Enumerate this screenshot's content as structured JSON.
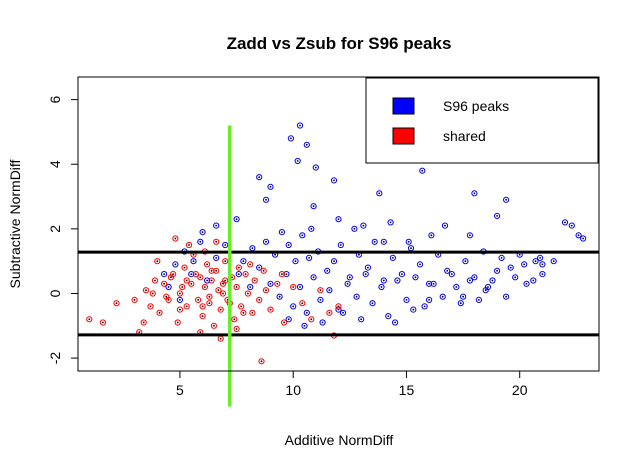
{
  "chart_data": {
    "type": "scatter",
    "title": "Zadd vs Zsub for S96 peaks",
    "xlabel": "Additive NormDiff",
    "ylabel": "Subtractive NormDiff",
    "xlim": [
      0.5,
      23.5
    ],
    "ylim": [
      -2.4,
      6.7
    ],
    "xticks": [
      5,
      10,
      15,
      20
    ],
    "yticks": [
      -2,
      0,
      2,
      4,
      6
    ],
    "grid": false,
    "legend": {
      "placement": "top-right",
      "entries": [
        {
          "label": "S96 peaks",
          "color": "#0000ff"
        },
        {
          "label": "shared",
          "color": "#ff0000"
        }
      ]
    },
    "reference_lines": {
      "horizontal": [
        1.28,
        -1.28
      ],
      "vertical": [
        {
          "x": 7.2,
          "y_from": -3.5,
          "y_to": 5.2,
          "color": "#66ee22"
        }
      ]
    },
    "series": [
      {
        "name": "S96 peaks",
        "color": "#0000ff",
        "points": [
          [
            10.3,
            5.2
          ],
          [
            9.9,
            4.8
          ],
          [
            10.6,
            4.6
          ],
          [
            10.2,
            4.1
          ],
          [
            11.0,
            3.9
          ],
          [
            8.5,
            3.6
          ],
          [
            11.8,
            3.5
          ],
          [
            9.0,
            3.3
          ],
          [
            13.8,
            3.1
          ],
          [
            8.8,
            2.9
          ],
          [
            15.7,
            3.8
          ],
          [
            18.0,
            3.1
          ],
          [
            19.4,
            2.9
          ],
          [
            19.0,
            2.4
          ],
          [
            16.7,
            2.1
          ],
          [
            22.0,
            2.2
          ],
          [
            22.3,
            2.1
          ],
          [
            22.6,
            1.8
          ],
          [
            22.8,
            1.7
          ],
          [
            17.8,
            1.8
          ],
          [
            7.5,
            2.3
          ],
          [
            6.6,
            2.1
          ],
          [
            12.0,
            2.3
          ],
          [
            13.1,
            2.1
          ],
          [
            14.3,
            2.2
          ],
          [
            9.5,
            1.9
          ],
          [
            10.8,
            2.0
          ],
          [
            8.2,
            1.4
          ],
          [
            8.8,
            1.6
          ],
          [
            9.2,
            1.2
          ],
          [
            9.8,
            1.5
          ],
          [
            10.1,
            1.0
          ],
          [
            10.4,
            1.8
          ],
          [
            10.7,
            1.1
          ],
          [
            11.1,
            1.3
          ],
          [
            11.5,
            0.7
          ],
          [
            11.8,
            1.0
          ],
          [
            12.1,
            1.5
          ],
          [
            12.5,
            0.5
          ],
          [
            12.9,
            1.2
          ],
          [
            13.3,
            0.8
          ],
          [
            13.6,
            1.6
          ],
          [
            14.0,
            0.4
          ],
          [
            14.4,
            1.1
          ],
          [
            14.8,
            0.6
          ],
          [
            15.2,
            1.4
          ],
          [
            15.6,
            0.9
          ],
          [
            16.0,
            0.3
          ],
          [
            16.4,
            1.2
          ],
          [
            16.8,
            0.7
          ],
          [
            17.2,
            0.2
          ],
          [
            17.6,
            1.0
          ],
          [
            18.0,
            0.5
          ],
          [
            18.4,
            1.3
          ],
          [
            18.8,
            0.4
          ],
          [
            19.2,
            1.1
          ],
          [
            19.6,
            0.8
          ],
          [
            20.0,
            1.2
          ],
          [
            20.3,
            0.3
          ],
          [
            20.7,
            1.0
          ],
          [
            21.0,
            0.6
          ],
          [
            8.5,
            0.8
          ],
          [
            9.0,
            0.3
          ],
          [
            9.4,
            -0.1
          ],
          [
            9.7,
            0.6
          ],
          [
            10.0,
            -0.4
          ],
          [
            10.3,
            0.2
          ],
          [
            10.6,
            -0.6
          ],
          [
            10.9,
            0.5
          ],
          [
            11.2,
            -0.2
          ],
          [
            11.6,
            0.1
          ],
          [
            12.0,
            -0.5
          ],
          [
            12.4,
            0.3
          ],
          [
            12.8,
            -0.1
          ],
          [
            13.2,
            0.6
          ],
          [
            13.5,
            -0.3
          ],
          [
            13.9,
            0.2
          ],
          [
            14.2,
            -0.7
          ],
          [
            14.6,
            0.4
          ],
          [
            15.0,
            -0.2
          ],
          [
            15.4,
            0.5
          ],
          [
            15.8,
            -0.4
          ],
          [
            16.2,
            0.3
          ],
          [
            16.6,
            -0.1
          ],
          [
            17.0,
            0.6
          ],
          [
            17.4,
            -0.3
          ],
          [
            17.8,
            0.4
          ],
          [
            18.2,
            -0.2
          ],
          [
            18.6,
            0.2
          ],
          [
            19.0,
            0.7
          ],
          [
            19.4,
            -0.1
          ],
          [
            19.8,
            0.5
          ],
          [
            20.2,
            0.9
          ],
          [
            20.6,
            0.4
          ],
          [
            21.0,
            0.9
          ],
          [
            9.8,
            -0.8
          ],
          [
            10.5,
            -1.0
          ],
          [
            11.3,
            -0.9
          ],
          [
            13.0,
            -0.8
          ],
          [
            14.5,
            -0.9
          ],
          [
            12.2,
            -0.6
          ],
          [
            15.3,
            -0.5
          ],
          [
            16.0,
            -0.2
          ],
          [
            17.5,
            -0.1
          ],
          [
            18.5,
            0.1
          ],
          [
            4.8,
            0.9
          ],
          [
            5.2,
            1.3
          ],
          [
            5.5,
            0.6
          ],
          [
            5.9,
            1.6
          ],
          [
            6.2,
            0.4
          ],
          [
            4.5,
            0.2
          ],
          [
            5.0,
            -0.2
          ],
          [
            6.0,
            1.9
          ],
          [
            6.6,
            1.1
          ],
          [
            5.6,
            1.0
          ],
          [
            4.3,
            0.6
          ],
          [
            7.0,
            1.5
          ],
          [
            7.8,
            1.0
          ],
          [
            8.1,
            0.2
          ],
          [
            7.6,
            0.6
          ],
          [
            10.9,
            2.7
          ],
          [
            12.7,
            2.0
          ],
          [
            14.0,
            1.6
          ],
          [
            15.1,
            1.6
          ],
          [
            16.1,
            1.8
          ],
          [
            21.5,
            1.0
          ],
          [
            20.9,
            1.1
          ]
        ]
      },
      {
        "name": "shared",
        "color": "#ff0000",
        "points": [
          [
            1.0,
            -0.8
          ],
          [
            1.6,
            -0.9
          ],
          [
            2.2,
            -0.3
          ],
          [
            3.0,
            -0.2
          ],
          [
            3.2,
            -1.2
          ],
          [
            3.5,
            0.1
          ],
          [
            3.7,
            -0.4
          ],
          [
            3.9,
            0.4
          ],
          [
            4.1,
            -0.6
          ],
          [
            4.3,
            0.3
          ],
          [
            4.5,
            -0.2
          ],
          [
            4.7,
            0.6
          ],
          [
            4.9,
            -0.9
          ],
          [
            5.0,
            0.0
          ],
          [
            5.2,
            0.8
          ],
          [
            5.3,
            -0.4
          ],
          [
            5.5,
            0.3
          ],
          [
            5.6,
            1.2
          ],
          [
            5.8,
            -0.2
          ],
          [
            5.9,
            0.5
          ],
          [
            6.0,
            -0.7
          ],
          [
            6.1,
            0.2
          ],
          [
            6.2,
            0.9
          ],
          [
            6.3,
            -0.3
          ],
          [
            6.4,
            0.4
          ],
          [
            6.5,
            -1.0
          ],
          [
            6.6,
            0.7
          ],
          [
            6.7,
            0.1
          ],
          [
            6.8,
            -0.5
          ],
          [
            6.9,
            0.3
          ],
          [
            7.0,
            1.0
          ],
          [
            7.1,
            -0.2
          ],
          [
            7.3,
            0.5
          ],
          [
            7.4,
            -0.8
          ],
          [
            7.5,
            0.2
          ],
          [
            7.6,
            0.8
          ],
          [
            7.7,
            -0.4
          ],
          [
            7.9,
            0.6
          ],
          [
            8.0,
            0.0
          ],
          [
            8.2,
            -0.6
          ],
          [
            8.3,
            0.4
          ],
          [
            8.5,
            -0.2
          ],
          [
            8.7,
            0.7
          ],
          [
            8.6,
            -2.1
          ],
          [
            9.0,
            -0.5
          ],
          [
            9.3,
            0.3
          ],
          [
            9.6,
            -0.9
          ],
          [
            10.0,
            0.2
          ],
          [
            10.4,
            -0.3
          ],
          [
            10.8,
            -0.8
          ],
          [
            11.2,
            0.1
          ],
          [
            11.6,
            -0.6
          ],
          [
            12.0,
            -0.4
          ],
          [
            11.8,
            -1.3
          ],
          [
            5.4,
            1.5
          ],
          [
            6.6,
            1.6
          ],
          [
            4.0,
            1.0
          ],
          [
            4.8,
            1.7
          ],
          [
            6.1,
            1.3
          ],
          [
            5.9,
            -1.2
          ],
          [
            6.8,
            -1.4
          ],
          [
            7.5,
            -1.1
          ],
          [
            3.4,
            -0.9
          ],
          [
            5.0,
            -0.5
          ],
          [
            6.3,
            -0.1
          ],
          [
            7.0,
            0.4
          ],
          [
            7.2,
            -0.3
          ],
          [
            6.9,
            0.0
          ],
          [
            5.7,
            0.6
          ],
          [
            6.4,
            0.7
          ],
          [
            5.1,
            0.2
          ],
          [
            4.4,
            -0.1
          ],
          [
            8.1,
            0.9
          ],
          [
            8.8,
            0.1
          ],
          [
            9.5,
            0.6
          ],
          [
            7.8,
            -0.6
          ],
          [
            6.0,
            -0.4
          ],
          [
            5.3,
            0.4
          ],
          [
            4.6,
            0.5
          ],
          [
            3.8,
            0.0
          ]
        ]
      }
    ]
  }
}
